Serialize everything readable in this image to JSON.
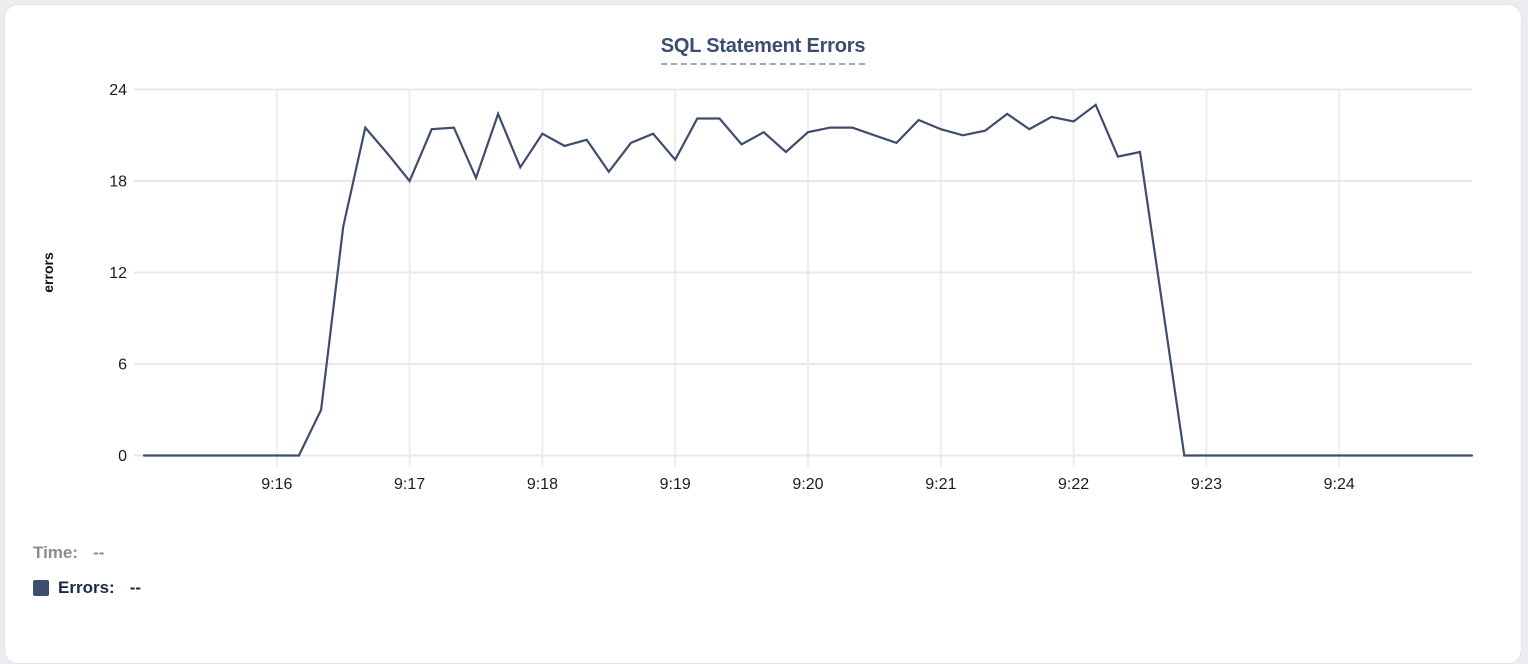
{
  "chart_data": {
    "type": "line",
    "title": "SQL Statement Errors",
    "xlabel": "",
    "ylabel": "errors",
    "x_start": "9:15:00",
    "x_end": "9:25:00",
    "interval_seconds": 10,
    "x_tick_labels": [
      "9:16",
      "9:17",
      "9:18",
      "9:19",
      "9:20",
      "9:21",
      "9:22",
      "9:23",
      "9:24"
    ],
    "y_ticks": [
      0,
      6,
      12,
      18,
      24
    ],
    "ylim": [
      0,
      24
    ],
    "grid": true,
    "legend_position": "bottom-left",
    "series": [
      {
        "name": "Errors",
        "color": "#3e4d6e",
        "values": [
          0,
          0,
          0,
          0,
          0,
          0,
          0,
          0,
          3,
          15,
          21.5,
          19.8,
          18,
          21.4,
          21.5,
          18.2,
          22.4,
          18.9,
          21.1,
          20.3,
          20.7,
          18.6,
          20.5,
          21.1,
          19.4,
          22.1,
          22.1,
          20.4,
          21.2,
          19.9,
          21.2,
          21.5,
          21.5,
          21,
          20.5,
          22,
          21.4,
          21,
          21.3,
          22.4,
          21.4,
          22.2,
          21.9,
          23,
          19.6,
          19.9,
          10,
          0,
          0,
          0,
          0,
          0,
          0,
          0,
          0,
          0,
          0,
          0,
          0,
          0,
          0
        ]
      }
    ]
  },
  "tooltip_readout": {
    "time_label": "Time:",
    "time_value": "--",
    "errors_label": "Errors:",
    "errors_value": "--"
  },
  "colors": {
    "line": "#3e4d6e",
    "title_text": "#3c4d6e",
    "title_underline": "#9aa8c2",
    "grid_horizontal": "#e8e8e8",
    "grid_vertical": "#ededed",
    "tick_text": "#1c1c1e",
    "legend_muted": "#8b8b90",
    "legend_dark": "#1c2947",
    "card_border": "#e2e2e8"
  }
}
